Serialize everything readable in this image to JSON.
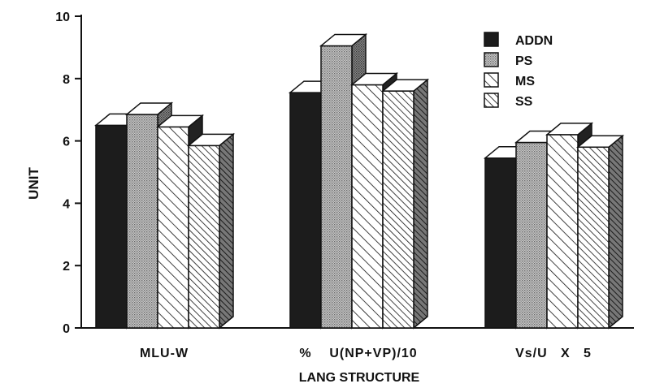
{
  "chart_data": {
    "type": "bar",
    "title": "",
    "xlabel": "LANG STRUCTURE",
    "ylabel": "UNIT",
    "ylim": [
      0,
      10
    ],
    "yticks": [
      0,
      2,
      4,
      6,
      8,
      10
    ],
    "grid": false,
    "legend_position": "top-right",
    "categories": [
      "MLU-W",
      "%    U(NP+VP)/10",
      "Vs/U   X   5"
    ],
    "series": [
      {
        "name": "ADDN",
        "pattern": "solid",
        "values": [
          6.5,
          7.55,
          5.45
        ]
      },
      {
        "name": "PS",
        "pattern": "dots",
        "values": [
          6.85,
          9.05,
          5.95
        ]
      },
      {
        "name": "MS",
        "pattern": "hatch-fine",
        "values": [
          6.45,
          7.8,
          6.2
        ]
      },
      {
        "name": "SS",
        "pattern": "hatch-dense",
        "values": [
          5.85,
          7.6,
          5.8
        ]
      }
    ],
    "colors": {
      "dark": "#1a1a1a",
      "light": "#ffffff",
      "side": "#555555",
      "dots": "#8c8c8c"
    }
  }
}
